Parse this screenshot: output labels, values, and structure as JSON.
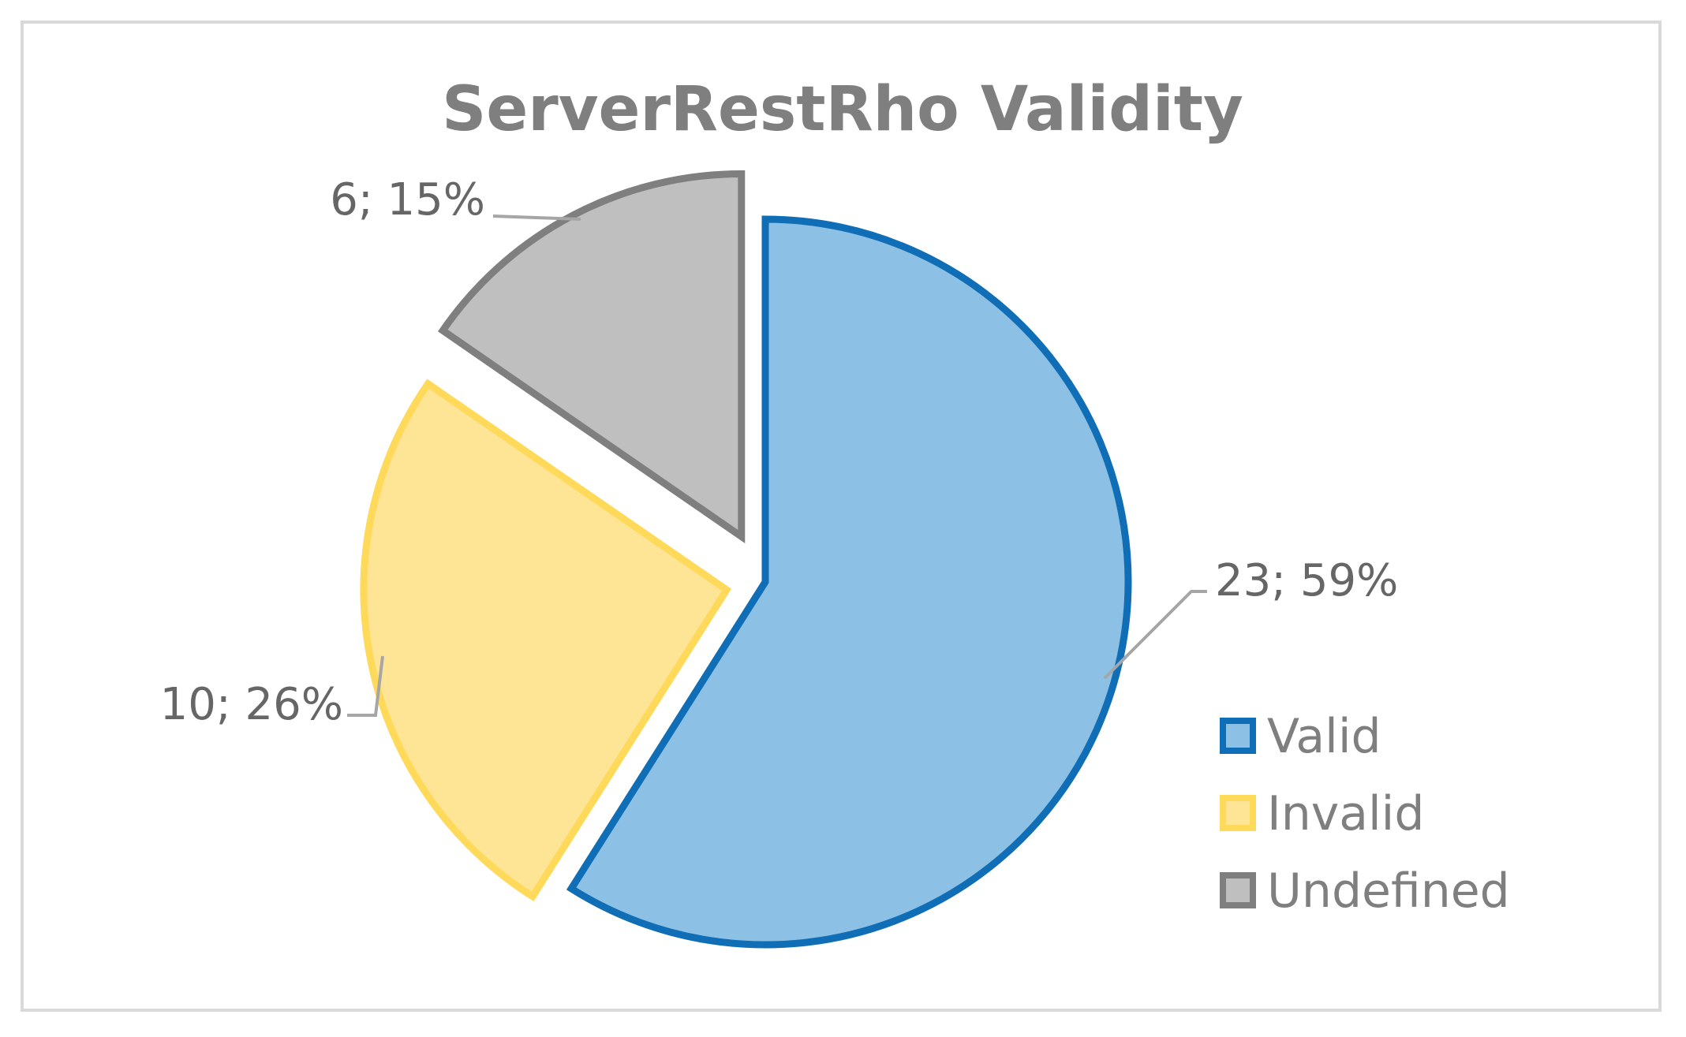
{
  "chart_data": {
    "type": "pie",
    "title": "ServerRestRho Validity",
    "categories": [
      "Valid",
      "Invalid",
      "Undefined"
    ],
    "values": [
      23,
      10,
      6
    ],
    "percentages": [
      59,
      26,
      15
    ],
    "labels": [
      "23; 59%",
      "10; 26%",
      "6; 15%"
    ],
    "colors": {
      "fill": [
        "#8dc0e5",
        "#fee595",
        "#bfbfbf"
      ],
      "border": [
        "#0f6eb5",
        "#ffd95a",
        "#7f7f7f"
      ]
    },
    "start_angle": "12 o'clock, clockwise",
    "exploded": [
      "Invalid",
      "Undefined"
    ],
    "legend": {
      "position": "bottom-right",
      "entries": [
        "Valid",
        "Invalid",
        "Undefined"
      ]
    }
  }
}
